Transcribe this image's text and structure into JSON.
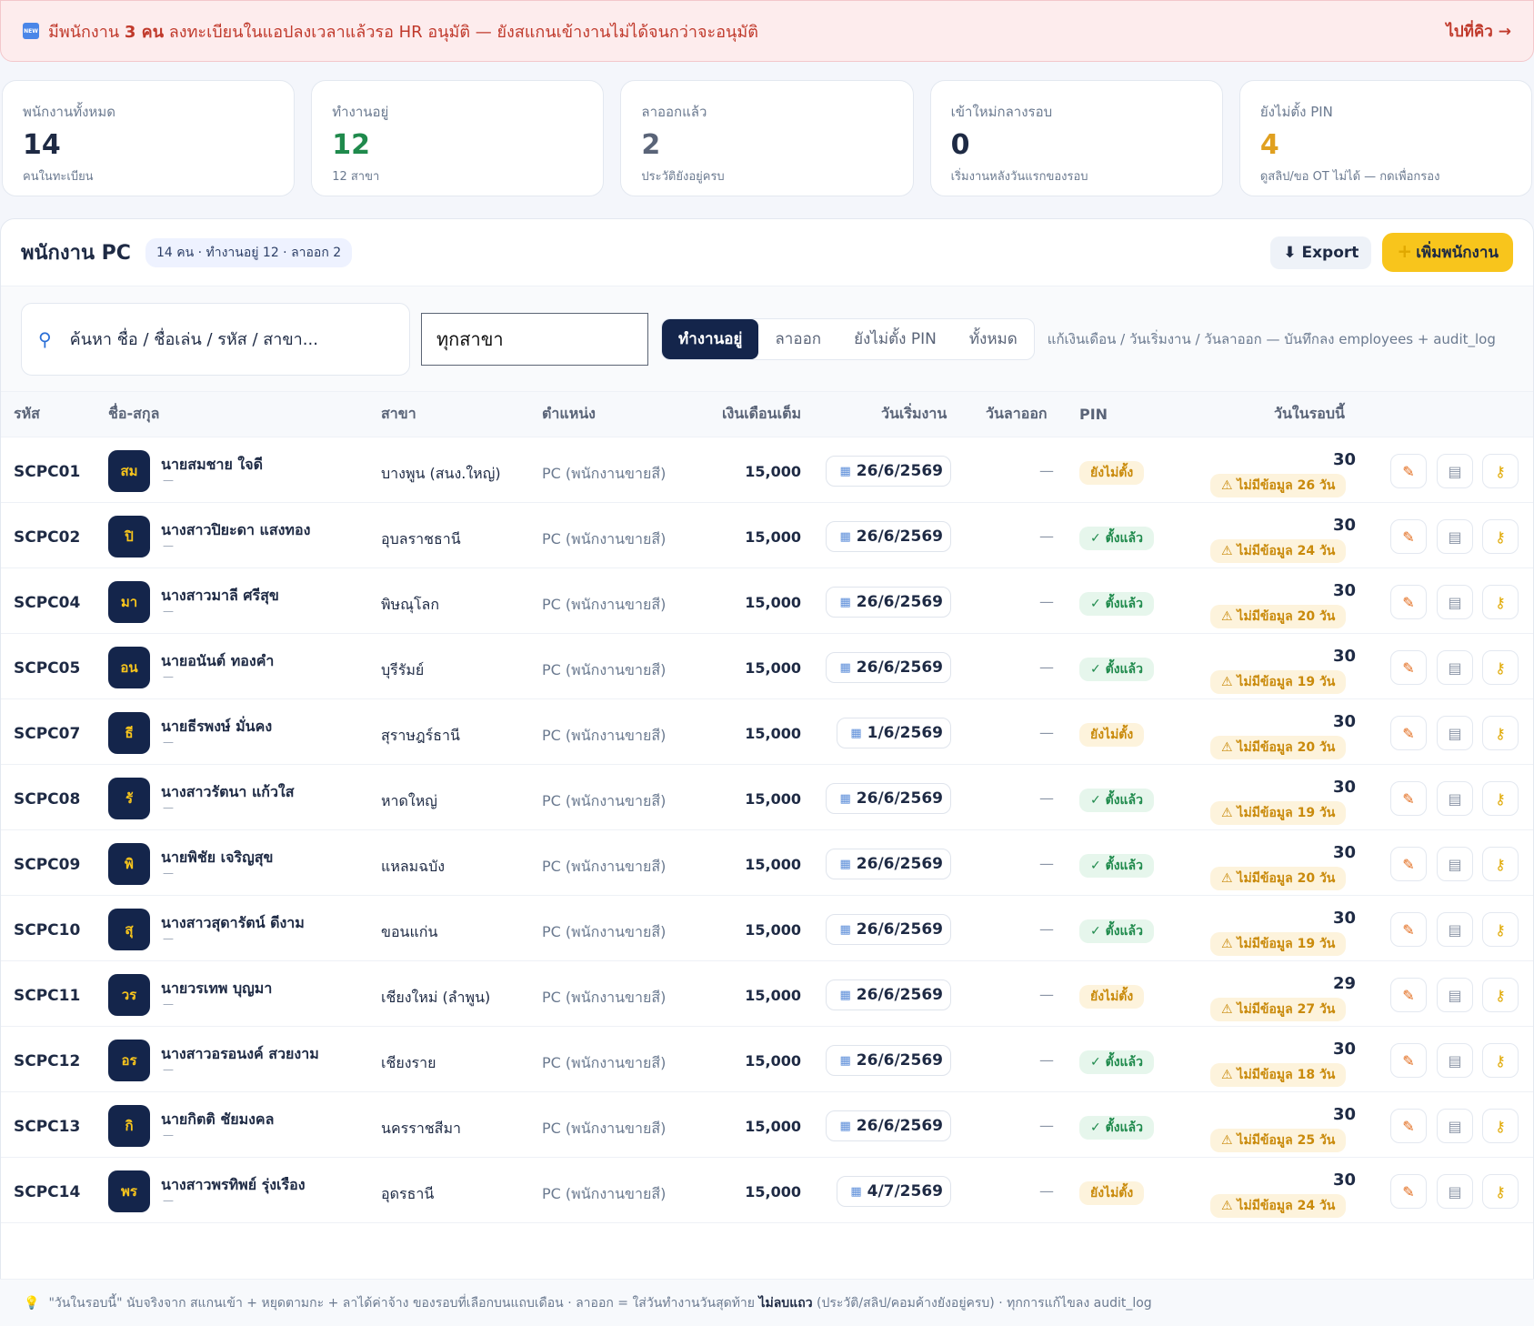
{
  "banner": {
    "msg_pre": "มีพนักงาน",
    "msg_count": "3 คน",
    "msg_post": "ลงทะเบียนในแอปลงเวลาแล้วรอ HR อนุมัติ — ยังสแกนเข้างานไม่ได้จนกว่าจะอนุมัติ",
    "go_label": "ไปที่คิว →",
    "icon": "new-badge-icon"
  },
  "stats": [
    {
      "label": "พนักงานทั้งหมด",
      "value": "14",
      "sub": "คนในทะเบียน",
      "color": "#1e2a44"
    },
    {
      "label": "ทำงานอยู่",
      "value": "12",
      "sub": "12 สาขา",
      "color": "#1f8a4c"
    },
    {
      "label": "ลาออกแล้ว",
      "value": "2",
      "sub": "ประวัติยังอยู่ครบ",
      "color": "#5a6478"
    },
    {
      "label": "เข้าใหม่กลางรอบ",
      "value": "0",
      "sub": "เริ่มงานหลังวันแรกของรอบ",
      "color": "#1e2a44"
    },
    {
      "label": "ยังไม่ตั้ง PIN",
      "value": "4",
      "sub": "ดูสลิป/ขอ OT ไม่ได้ — กดเพื่อกรอง",
      "color": "#e0a020"
    }
  ],
  "panel": {
    "title": "พนักงาน PC",
    "pill": "14 คน · ทำงานอยู่ 12 · ลาออก 2",
    "export_label": "⬇ Export",
    "add_label": "เพิ่มพนักงาน"
  },
  "toolbar": {
    "search_placeholder": "ค้นหา ชื่อ / ชื่อเล่น / รหัส / สาขา...",
    "branch_value": "ทุกสาขา",
    "tabs": [
      "ทำงานอยู่",
      "ลาออก",
      "ยังไม่ตั้ง PIN",
      "ทั้งหมด"
    ],
    "hint": "แก้เงินเดือน / วันเริ่มงาน / วันลาออก — บันทึกลง employees + audit_log"
  },
  "columns": [
    "รหัส",
    "ชื่อ-สกุล",
    "สาขา",
    "ตำแหน่ง",
    "เงินเดือนเต็ม",
    "วันเริ่มงาน",
    "วันลาออก",
    "PIN",
    "วันในรอบนี้"
  ],
  "rows": [
    {
      "code": "SCPC01",
      "avatar": "สม",
      "name": "นายสมชาย ใจดี",
      "nick": "—",
      "branch": "บางพูน (สนง.ใหญ่)",
      "pos": "PC (พนักงานขายสี)",
      "salary": "15,000",
      "start": "26/6/2569",
      "leave": "—",
      "pin": "ยังไม่ตั้ง",
      "pin_ok": false,
      "days": "30",
      "miss": "⚠ ไม่มีข้อมูล 26 วัน"
    },
    {
      "code": "SCPC02",
      "avatar": "ปิ",
      "name": "นางสาวปิยะดา แสงทอง",
      "nick": "—",
      "branch": "อุบลราชธานี",
      "pos": "PC (พนักงานขายสี)",
      "salary": "15,000",
      "start": "26/6/2569",
      "leave": "—",
      "pin": "✓ ตั้งแล้ว",
      "pin_ok": true,
      "days": "30",
      "miss": "⚠ ไม่มีข้อมูล 24 วัน"
    },
    {
      "code": "SCPC04",
      "avatar": "มา",
      "name": "นางสาวมาลี ศรีสุข",
      "nick": "—",
      "branch": "พิษณุโลก",
      "pos": "PC (พนักงานขายสี)",
      "salary": "15,000",
      "start": "26/6/2569",
      "leave": "—",
      "pin": "✓ ตั้งแล้ว",
      "pin_ok": true,
      "days": "30",
      "miss": "⚠ ไม่มีข้อมูล 20 วัน"
    },
    {
      "code": "SCPC05",
      "avatar": "อน",
      "name": "นายอนันต์ ทองคำ",
      "nick": "—",
      "branch": "บุรีรัมย์",
      "pos": "PC (พนักงานขายสี)",
      "salary": "15,000",
      "start": "26/6/2569",
      "leave": "—",
      "pin": "✓ ตั้งแล้ว",
      "pin_ok": true,
      "days": "30",
      "miss": "⚠ ไม่มีข้อมูล 19 วัน"
    },
    {
      "code": "SCPC07",
      "avatar": "ธี",
      "name": "นายธีรพงษ์ มั่นคง",
      "nick": "—",
      "branch": "สุราษฎร์ธานี",
      "pos": "PC (พนักงานขายสี)",
      "salary": "15,000",
      "start": "1/6/2569",
      "leave": "—",
      "pin": "ยังไม่ตั้ง",
      "pin_ok": false,
      "days": "30",
      "miss": "⚠ ไม่มีข้อมูล 20 วัน"
    },
    {
      "code": "SCPC08",
      "avatar": "รั",
      "name": "นางสาวรัตนา แก้วใส",
      "nick": "—",
      "branch": "หาดใหญ่",
      "pos": "PC (พนักงานขายสี)",
      "salary": "15,000",
      "start": "26/6/2569",
      "leave": "—",
      "pin": "✓ ตั้งแล้ว",
      "pin_ok": true,
      "days": "30",
      "miss": "⚠ ไม่มีข้อมูล 19 วัน"
    },
    {
      "code": "SCPC09",
      "avatar": "พิ",
      "name": "นายพิชัย เจริญสุข",
      "nick": "—",
      "branch": "แหลมฉบัง",
      "pos": "PC (พนักงานขายสี)",
      "salary": "15,000",
      "start": "26/6/2569",
      "leave": "—",
      "pin": "✓ ตั้งแล้ว",
      "pin_ok": true,
      "days": "30",
      "miss": "⚠ ไม่มีข้อมูล 20 วัน"
    },
    {
      "code": "SCPC10",
      "avatar": "สุ",
      "name": "นางสาวสุดารัตน์ ดีงาม",
      "nick": "—",
      "branch": "ขอนแก่น",
      "pos": "PC (พนักงานขายสี)",
      "salary": "15,000",
      "start": "26/6/2569",
      "leave": "—",
      "pin": "✓ ตั้งแล้ว",
      "pin_ok": true,
      "days": "30",
      "miss": "⚠ ไม่มีข้อมูล 19 วัน"
    },
    {
      "code": "SCPC11",
      "avatar": "วร",
      "name": "นายวรเทพ บุญมา",
      "nick": "—",
      "branch": "เชียงใหม่ (ลำพูน)",
      "pos": "PC (พนักงานขายสี)",
      "salary": "15,000",
      "start": "26/6/2569",
      "leave": "—",
      "pin": "ยังไม่ตั้ง",
      "pin_ok": false,
      "days": "29",
      "miss": "⚠ ไม่มีข้อมูล 27 วัน"
    },
    {
      "code": "SCPC12",
      "avatar": "อร",
      "name": "นางสาวอรอนงค์ สวยงาม",
      "nick": "—",
      "branch": "เชียงราย",
      "pos": "PC (พนักงานขายสี)",
      "salary": "15,000",
      "start": "26/6/2569",
      "leave": "—",
      "pin": "✓ ตั้งแล้ว",
      "pin_ok": true,
      "days": "30",
      "miss": "⚠ ไม่มีข้อมูล 18 วัน"
    },
    {
      "code": "SCPC13",
      "avatar": "กิ",
      "name": "นายกิตติ ชัยมงคล",
      "nick": "—",
      "branch": "นครราชสีมา",
      "pos": "PC (พนักงานขายสี)",
      "salary": "15,000",
      "start": "26/6/2569",
      "leave": "—",
      "pin": "✓ ตั้งแล้ว",
      "pin_ok": true,
      "days": "30",
      "miss": "⚠ ไม่มีข้อมูล 25 วัน"
    },
    {
      "code": "SCPC14",
      "avatar": "พร",
      "name": "นางสาวพรทิพย์ รุ่งเรือง",
      "nick": "—",
      "branch": "อุดรธานี",
      "pos": "PC (พนักงานขายสี)",
      "salary": "15,000",
      "start": "4/7/2569",
      "leave": "—",
      "pin": "ยังไม่ตั้ง",
      "pin_ok": false,
      "days": "30",
      "miss": "⚠ ไม่มีข้อมูล 24 วัน"
    }
  ],
  "footer": {
    "text_a": "\"วันในรอบนี้\" นับจริงจาก สแกนเข้า + หยุดตามกะ + ลาได้ค่าจ้าง ของรอบที่เลือกบนแถบเดือน · ลาออก = ใส่วันทำงานวันสุดท้าย",
    "text_bold": "ไม่ลบแถว",
    "text_b": "(ประวัติ/สลิป/คอมค้างยังอยู่ครบ) · ทุกการแก้ไขลง audit_log"
  }
}
